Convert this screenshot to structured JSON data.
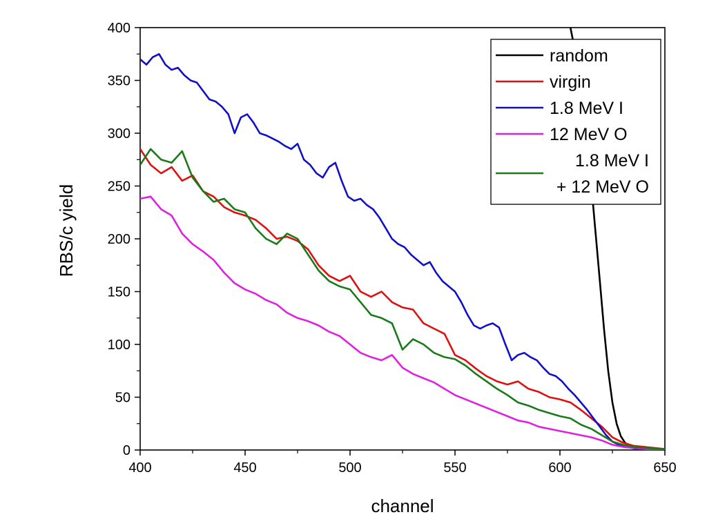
{
  "chart_data": {
    "type": "line",
    "title": "",
    "xlabel": "channel",
    "ylabel": "RBS/c yield",
    "xlim": [
      400,
      650
    ],
    "ylim": [
      0,
      400
    ],
    "x_ticks": [
      "400",
      "450",
      "500",
      "550",
      "600",
      "650"
    ],
    "y_ticks": [
      "0",
      "50",
      "100",
      "150",
      "200",
      "250",
      "300",
      "350",
      "400"
    ],
    "grid": false,
    "legend_position": "top-right",
    "series": [
      {
        "name": "random",
        "color": "#000000",
        "x": [
          605,
          607,
          609,
          611,
          613,
          615,
          617,
          619,
          621,
          623,
          625,
          627,
          629,
          631,
          633,
          635,
          638,
          641,
          645,
          650
        ],
        "y": [
          400,
          380,
          355,
          325,
          290,
          250,
          205,
          160,
          115,
          75,
          45,
          25,
          13,
          7,
          4,
          3,
          2,
          2,
          1,
          0
        ]
      },
      {
        "name": "virgin",
        "color": "#dd1010",
        "x": [
          400,
          405,
          410,
          415,
          420,
          425,
          430,
          435,
          440,
          445,
          450,
          455,
          460,
          465,
          470,
          475,
          480,
          485,
          490,
          495,
          500,
          505,
          510,
          515,
          520,
          525,
          530,
          535,
          540,
          545,
          550,
          555,
          560,
          565,
          570,
          575,
          580,
          585,
          590,
          595,
          600,
          605,
          610,
          615,
          620,
          625,
          630,
          635,
          640,
          650
        ],
        "y": [
          285,
          270,
          262,
          268,
          255,
          260,
          245,
          240,
          230,
          225,
          222,
          218,
          210,
          200,
          202,
          198,
          190,
          175,
          165,
          160,
          165,
          150,
          145,
          150,
          140,
          135,
          133,
          120,
          115,
          110,
          90,
          85,
          77,
          70,
          65,
          62,
          65,
          58,
          55,
          50,
          48,
          45,
          38,
          30,
          22,
          12,
          7,
          4,
          3,
          1
        ]
      },
      {
        "name": "1.8 MeV I",
        "color": "#1010c8",
        "x": [
          400,
          403,
          406,
          409,
          412,
          415,
          418,
          421,
          424,
          427,
          430,
          433,
          436,
          439,
          442,
          445,
          448,
          451,
          454,
          457,
          460,
          463,
          466,
          469,
          472,
          475,
          478,
          481,
          484,
          487,
          490,
          493,
          496,
          499,
          502,
          505,
          508,
          511,
          514,
          517,
          520,
          523,
          526,
          529,
          532,
          535,
          538,
          541,
          544,
          547,
          550,
          553,
          556,
          559,
          562,
          565,
          568,
          571,
          574,
          577,
          580,
          583,
          586,
          589,
          592,
          595,
          598,
          601,
          604,
          607,
          610,
          613,
          616,
          619,
          622,
          625,
          628,
          631,
          634,
          637,
          640,
          645,
          650
        ],
        "y": [
          370,
          365,
          372,
          375,
          365,
          360,
          362,
          355,
          350,
          348,
          340,
          332,
          330,
          325,
          318,
          300,
          315,
          318,
          310,
          300,
          298,
          295,
          292,
          288,
          285,
          290,
          275,
          270,
          262,
          258,
          268,
          272,
          255,
          240,
          236,
          238,
          232,
          228,
          220,
          210,
          200,
          195,
          192,
          185,
          180,
          175,
          178,
          168,
          160,
          155,
          150,
          140,
          128,
          118,
          115,
          118,
          120,
          116,
          100,
          85,
          90,
          92,
          88,
          85,
          78,
          72,
          70,
          65,
          58,
          52,
          45,
          38,
          30,
          22,
          14,
          8,
          5,
          3,
          2,
          1,
          1,
          1,
          0
        ]
      },
      {
        "name": "12 MeV O",
        "color": "#e020e0",
        "x": [
          400,
          405,
          410,
          415,
          420,
          425,
          430,
          435,
          440,
          445,
          450,
          455,
          460,
          465,
          470,
          475,
          480,
          485,
          490,
          495,
          500,
          505,
          510,
          515,
          520,
          525,
          530,
          535,
          540,
          545,
          550,
          555,
          560,
          565,
          570,
          575,
          580,
          585,
          590,
          595,
          600,
          605,
          610,
          615,
          620,
          625,
          630,
          635,
          640,
          650
        ],
        "y": [
          238,
          240,
          228,
          222,
          205,
          195,
          188,
          180,
          168,
          158,
          152,
          148,
          142,
          138,
          130,
          125,
          122,
          118,
          112,
          108,
          100,
          92,
          88,
          85,
          90,
          78,
          72,
          68,
          64,
          58,
          52,
          48,
          44,
          40,
          36,
          32,
          28,
          26,
          22,
          20,
          18,
          16,
          14,
          12,
          9,
          5,
          3,
          2,
          1,
          0
        ]
      },
      {
        "name": "1.8 MeV I\n+ 12 MeV O",
        "color": "#1a7a1a",
        "x": [
          400,
          405,
          410,
          415,
          420,
          425,
          430,
          435,
          440,
          445,
          450,
          455,
          460,
          465,
          470,
          475,
          480,
          485,
          490,
          495,
          500,
          505,
          510,
          515,
          520,
          525,
          530,
          535,
          540,
          545,
          550,
          555,
          560,
          565,
          570,
          575,
          580,
          585,
          590,
          595,
          600,
          605,
          610,
          615,
          620,
          625,
          630,
          635,
          640,
          650
        ],
        "y": [
          270,
          285,
          275,
          272,
          283,
          258,
          245,
          235,
          238,
          228,
          225,
          210,
          200,
          195,
          205,
          200,
          185,
          170,
          160,
          155,
          152,
          140,
          128,
          125,
          120,
          95,
          105,
          100,
          92,
          88,
          86,
          80,
          72,
          65,
          58,
          52,
          45,
          42,
          38,
          35,
          32,
          30,
          24,
          20,
          14,
          8,
          5,
          3,
          2,
          1
        ]
      }
    ]
  }
}
